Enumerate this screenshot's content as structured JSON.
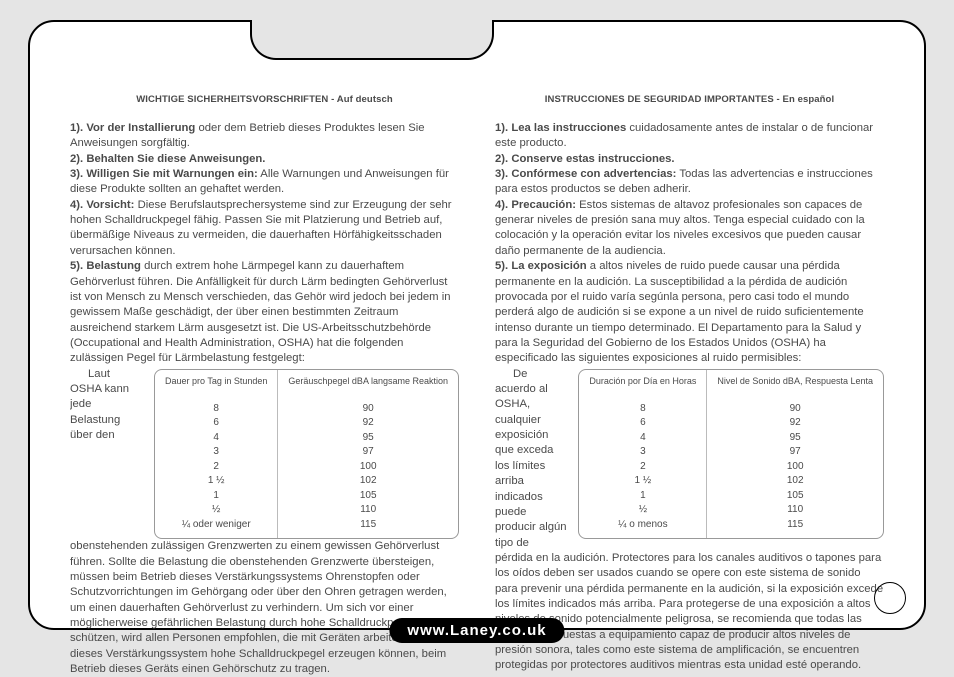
{
  "footer_url": "www.Laney.co.uk",
  "left": {
    "header": "WICHTIGE SICHERHEITSVORSCHRIFTEN - Auf deutsch",
    "p1_bold": "1). Vor der Installierung",
    "p1_rest": " oder dem Betrieb dieses Produktes lesen Sie Anweisungen sorgfältig.",
    "p2": "2). Behalten Sie diese Anweisungen.",
    "p3_bold": "3). Willigen Sie mit Warnungen ein:",
    "p3_rest": " Alle Warnungen und Anweisungen für diese Produkte sollten an gehaftet werden.",
    "p4_bold": "4). Vorsicht:",
    "p4_rest": " Diese Berufslautsprechersysteme sind zur Erzeugung der sehr hohen Schalldruckpegel fähig. Passen Sie mit Platzierung und Betrieb auf, übermäßige Niveaus zu vermeiden, die dauerhaften Hörfähigkeitsschaden verursachen können.",
    "p5_bold": "5). Belastung",
    "p5_rest": " durch extrem hohe Lärmpegel kann zu dauerhaftem Gehörverlust führen. Die Anfälligkeit für durch Lärm bedingten Gehörverlust ist von Mensch zu Mensch verschieden, das Gehör wird jedoch bei jedem in gewissem Maße geschädigt, der über einen bestimmten Zeitraum ausreichend starkem Lärm ausgesetzt ist. Die US-Arbeitsschutzbehörde (Occupational and Health Administration, OSHA) hat die folgenden zulässigen Pegel für Lärmbelastung festgelegt:",
    "p6": "Laut OSHA kann jede Belastung über den obenstehenden zulässigen Grenzwerten zu einem gewissen Gehörverlust führen. Sollte die Belastung die obenstehenden Grenzwerte übersteigen, müssen beim Betrieb dieses Verstärkungssystems Ohrenstopfen oder Schutzvorrichtungen im Gehörgang oder über den Ohren getragen werden, um einen dauerhaften Gehörverlust zu verhindern. Um sich vor einer möglicherweise gefährlichen Belastung durch hohe Schalldruckpegel zu schützen, wird allen Personen empfohlen, die mit Geräten arbeiten, die wie dieses Verstärkungssystem hohe Schalldruckpegel erzeugen können, beim Betrieb dieses Geräts einen Gehörschutz zu tragen.",
    "table": {
      "col1_head": "Dauer pro Tag in Stunden",
      "col2_head": "Geräuschpegel dBA langsame Reaktion",
      "col1": [
        "8",
        "6",
        "4",
        "3",
        "2",
        "1 ½",
        "1",
        "½",
        "¼ oder weniger"
      ],
      "col2": [
        "90",
        "92",
        "95",
        "97",
        "100",
        "102",
        "105",
        "110",
        "115"
      ]
    }
  },
  "right": {
    "header": "INSTRUCCIONES DE SEGURIDAD IMPORTANTES - En español",
    "p1_bold": "1). Lea las instrucciones",
    "p1_rest": " cuidadosamente antes de instalar o de funcionar este producto.",
    "p2": "2). Conserve estas instrucciones.",
    "p3_bold": "3). Confórmese con advertencias:",
    "p3_rest": " Todas las advertencias e instrucciones para estos productos se deben adherir.",
    "p4_bold": "4). Precaución:",
    "p4_rest": " Estos sistemas de altavoz profesionales son capaces de generar niveles de presión sana muy altos. Tenga especial cuidado con la colocación y la operación evitar los niveles excesivos que pueden causar daño permanente de la audiencia.",
    "p5_bold": "5). La exposición",
    "p5_rest": " a altos niveles de ruido puede causar una pérdida permanente en la audición. La susceptibilidad a la pérdida de audición provocada por el ruido varía segúnla persona, pero casi todo el mundo perderá algo de audición si se expone a un nivel de ruido suficientemente intenso durante un tiempo determinado. El Departamento para la Salud y para la Seguridad del Gobierno de los Estados Unidos (OSHA) ha especificado las siguientes exposiciones al ruido permisibles:",
    "p6": "De acuerdo al OSHA, cualquier exposición que exceda los límites arriba indicados puede producir algún tipo de pérdida en la audición. Protectores para los canales auditivos o tapones para los oídos deben ser usados cuando se opere con este sistema de sonido para prevenir una pérdida permanente en la audición, si la exposición excede los límites indicados más arriba. Para protegerse de una exposición a altos niveles de sonido potencialmente peligrosa, se recomienda que todas las personas expuestas a equipamiento capaz de producir altos niveles de presión sonora, tales como este sistema de amplificación, se encuentren protegidas por protectores auditivos mientras esta unidad esté operando.",
    "table": {
      "col1_head": "Duración por Día en Horas",
      "col2_head": "Nivel de Sonido dBA, Respuesta Lenta",
      "col1": [
        "8",
        "6",
        "4",
        "3",
        "2",
        "1 ½",
        "1",
        "½",
        "¼ o menos"
      ],
      "col2": [
        "90",
        "92",
        "95",
        "97",
        "100",
        "102",
        "105",
        "110",
        "115"
      ]
    }
  }
}
